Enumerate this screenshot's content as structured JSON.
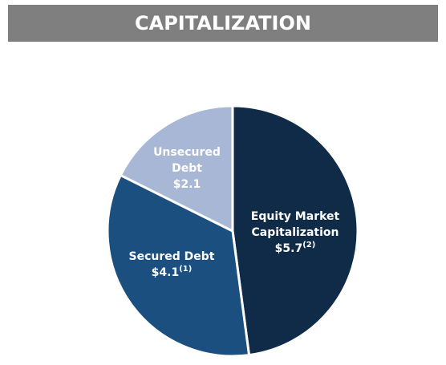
{
  "chart_data": {
    "type": "pie",
    "title": "CAPITALIZATION",
    "categories": [
      "Equity Market Capitalization",
      "Secured Debt",
      "Unsecured Debt"
    ],
    "values": [
      5.7,
      4.1,
      2.1
    ],
    "value_labels": [
      "$5.7",
      "$4.1",
      "$2.1"
    ],
    "footnotes": [
      "(2)",
      "(1)",
      null
    ],
    "colors": [
      "#0f2b47",
      "#1b4f7f",
      "#a8b7d5"
    ]
  }
}
